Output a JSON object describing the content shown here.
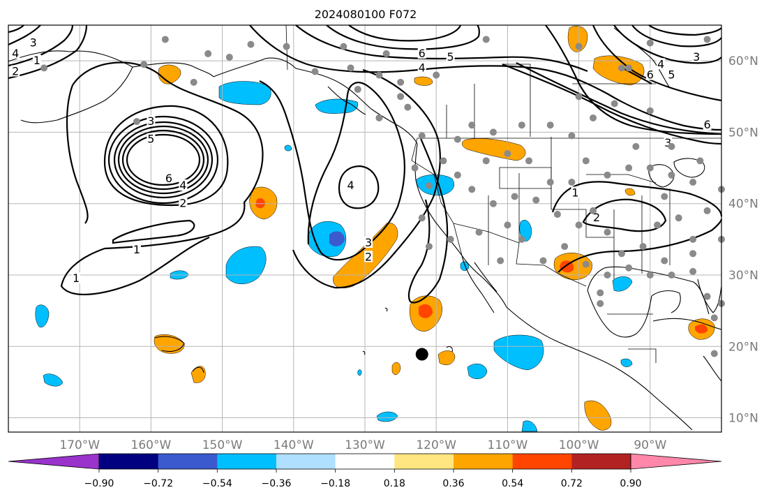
{
  "title": "2024080100 F072",
  "map": {
    "lon_range": [
      -180,
      -80
    ],
    "lat_range": [
      8,
      65
    ],
    "lon_ticks": [
      {
        "value": -170,
        "label": "170°W"
      },
      {
        "value": -160,
        "label": "160°W"
      },
      {
        "value": -150,
        "label": "150°W"
      },
      {
        "value": -140,
        "label": "140°W"
      },
      {
        "value": -130,
        "label": "130°W"
      },
      {
        "value": -120,
        "label": "120°W"
      },
      {
        "value": -110,
        "label": "110°W"
      },
      {
        "value": -100,
        "label": "100°W"
      },
      {
        "value": -90,
        "label": "90°W"
      }
    ],
    "lat_ticks": [
      {
        "value": 60,
        "label": "60°N"
      },
      {
        "value": 50,
        "label": "50°N"
      },
      {
        "value": 40,
        "label": "40°N"
      },
      {
        "value": 30,
        "label": "30°N"
      },
      {
        "value": 20,
        "label": "20°N"
      },
      {
        "value": 10,
        "label": "10°N"
      }
    ],
    "highlight_point": {
      "lon": -122,
      "lat": 18.9
    },
    "contour_labels": [
      {
        "text": "1",
        "lon": -162,
        "lat": 33.5
      },
      {
        "text": "1",
        "lon": -170.5,
        "lat": 29.5
      },
      {
        "text": "2",
        "lon": -155.5,
        "lat": 40
      },
      {
        "text": "4",
        "lon": -155.5,
        "lat": 42.5
      },
      {
        "text": "6",
        "lon": -157.5,
        "lat": 43.5
      },
      {
        "text": "5",
        "lon": -160,
        "lat": 49
      },
      {
        "text": "3",
        "lon": -160,
        "lat": 51.5
      },
      {
        "text": "4",
        "lon": -132,
        "lat": 42.5
      },
      {
        "text": "3",
        "lon": -129.5,
        "lat": 34.5
      },
      {
        "text": "2",
        "lon": -129.5,
        "lat": 32.5
      },
      {
        "text": "6",
        "lon": -122,
        "lat": 61
      },
      {
        "text": "5",
        "lon": -118,
        "lat": 60.5
      },
      {
        "text": "4",
        "lon": -122,
        "lat": 59
      },
      {
        "text": "3",
        "lon": -87.5,
        "lat": 48.5
      },
      {
        "text": "6",
        "lon": -82,
        "lat": 51
      },
      {
        "text": "2",
        "lon": -97.5,
        "lat": 38
      },
      {
        "text": "1",
        "lon": -100.5,
        "lat": 41.5
      },
      {
        "text": "6",
        "lon": -90,
        "lat": 58
      },
      {
        "text": "4",
        "lon": -88.5,
        "lat": 59.5
      },
      {
        "text": "5",
        "lon": -87,
        "lat": 58
      },
      {
        "text": "3",
        "lon": -83.5,
        "lat": 60.5
      },
      {
        "text": "3",
        "lon": -176.5,
        "lat": 62.5
      },
      {
        "text": "1",
        "lon": -176,
        "lat": 60
      },
      {
        "text": "2",
        "lon": -179,
        "lat": 58.5
      },
      {
        "text": "4",
        "lon": -179,
        "lat": 61
      }
    ]
  },
  "colorbar": {
    "levels": [
      -0.9,
      -0.72,
      -0.54,
      -0.36,
      -0.18,
      0.18,
      0.36,
      0.54,
      0.72,
      0.9
    ],
    "tick_labels": [
      "−0.90",
      "−0.72",
      "−0.54",
      "−0.36",
      "−0.18",
      "0.18",
      "0.36",
      "0.54",
      "0.72",
      "0.90"
    ],
    "colors": {
      "under": "#9933cc",
      "bins": [
        "#000080",
        "#3a5acd",
        "#00bfff",
        "#b0e0ff",
        "#ffffff",
        "#ffe680",
        "#ffa500",
        "#ff4500",
        "#b22222"
      ],
      "over": "#ff88aa"
    }
  }
}
